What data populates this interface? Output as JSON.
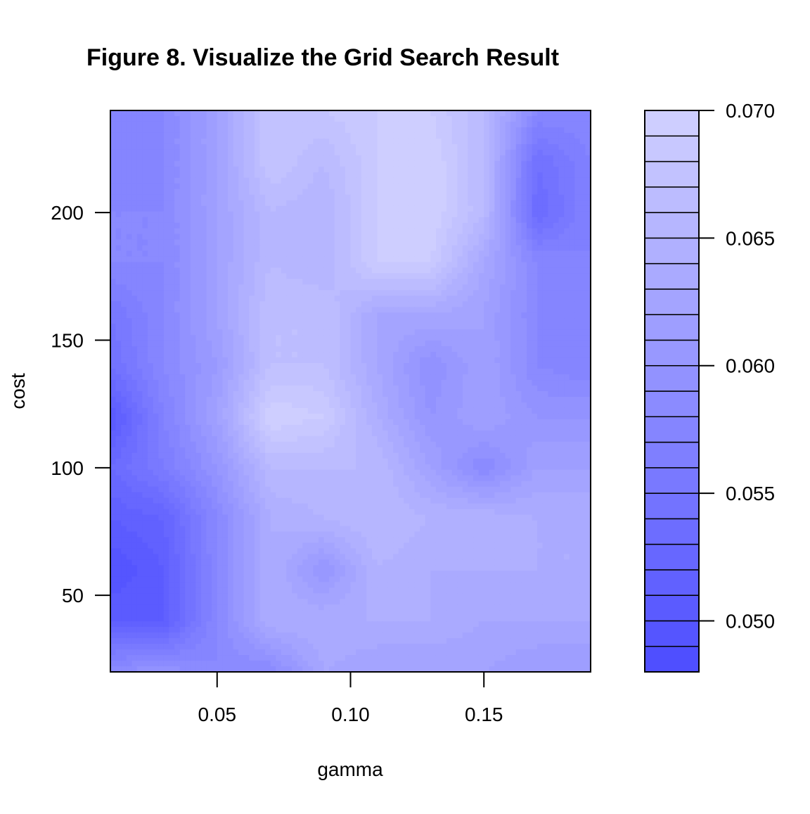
{
  "chart_data": {
    "type": "heatmap",
    "title": "Figure 8. Visualize the Grid Search Result",
    "xlabel": "gamma",
    "ylabel": "cost",
    "xlim": [
      0.01,
      0.19
    ],
    "ylim": [
      20,
      240
    ],
    "x_ticks": [
      0.05,
      0.1,
      0.15
    ],
    "x_tick_labels": [
      "0.05",
      "0.10",
      "0.15"
    ],
    "y_ticks": [
      50,
      100,
      150,
      200
    ],
    "y_tick_labels": [
      "50",
      "100",
      "150",
      "200"
    ],
    "x": [
      0.01,
      0.03,
      0.05,
      0.07,
      0.09,
      0.11,
      0.13,
      0.15,
      0.17,
      0.19
    ],
    "y": [
      20,
      40,
      60,
      80,
      100,
      120,
      140,
      160,
      180,
      200,
      220,
      240
    ],
    "z": [
      [
        0.059,
        0.06,
        0.058,
        0.058,
        0.063,
        0.062,
        0.062,
        0.062,
        0.061,
        0.061
      ],
      [
        0.051,
        0.051,
        0.058,
        0.064,
        0.064,
        0.064,
        0.064,
        0.063,
        0.063,
        0.063
      ],
      [
        0.049,
        0.051,
        0.058,
        0.064,
        0.06,
        0.065,
        0.064,
        0.064,
        0.064,
        0.064
      ],
      [
        0.051,
        0.052,
        0.058,
        0.064,
        0.065,
        0.066,
        0.065,
        0.065,
        0.064,
        0.064
      ],
      [
        0.053,
        0.056,
        0.06,
        0.066,
        0.066,
        0.066,
        0.062,
        0.058,
        0.062,
        0.062
      ],
      [
        0.05,
        0.057,
        0.062,
        0.07,
        0.069,
        0.064,
        0.06,
        0.062,
        0.06,
        0.06
      ],
      [
        0.054,
        0.058,
        0.061,
        0.067,
        0.067,
        0.063,
        0.059,
        0.062,
        0.058,
        0.057
      ],
      [
        0.055,
        0.058,
        0.062,
        0.067,
        0.067,
        0.063,
        0.063,
        0.062,
        0.058,
        0.057
      ],
      [
        0.058,
        0.058,
        0.062,
        0.066,
        0.065,
        0.069,
        0.069,
        0.063,
        0.058,
        0.057
      ],
      [
        0.058,
        0.058,
        0.062,
        0.066,
        0.065,
        0.069,
        0.07,
        0.066,
        0.053,
        0.057
      ],
      [
        0.057,
        0.058,
        0.062,
        0.068,
        0.066,
        0.069,
        0.07,
        0.066,
        0.054,
        0.057
      ],
      [
        0.058,
        0.058,
        0.062,
        0.068,
        0.068,
        0.069,
        0.069,
        0.066,
        0.058,
        0.058
      ]
    ],
    "levels": [
      0.048,
      0.049,
      0.05,
      0.051,
      0.052,
      0.053,
      0.054,
      0.055,
      0.056,
      0.057,
      0.058,
      0.059,
      0.06,
      0.061,
      0.062,
      0.063,
      0.064,
      0.065,
      0.066,
      0.067,
      0.068,
      0.069,
      0.07
    ],
    "legend_ticks": [
      0.05,
      0.055,
      0.06,
      0.065,
      0.07
    ],
    "legend_tick_labels": [
      "0.050",
      "0.055",
      "0.060",
      "0.065",
      "0.070"
    ],
    "legend_position": "right",
    "color_low": "#4f4fff",
    "color_high": "#ceceff",
    "grid": false
  }
}
